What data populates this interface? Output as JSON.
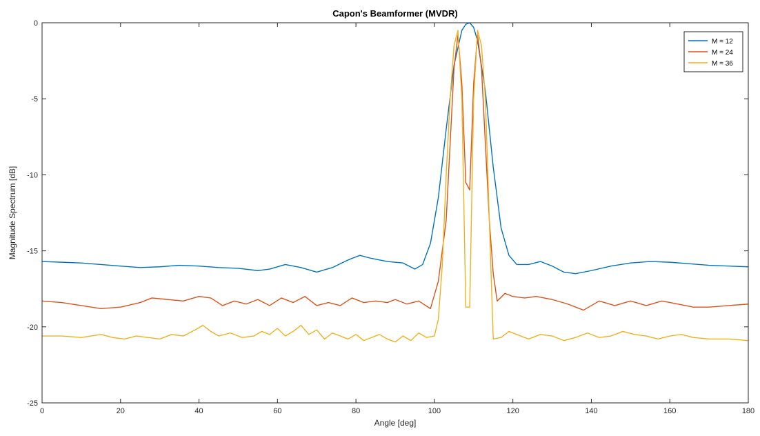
{
  "chart_data": {
    "type": "line",
    "title": "Capon's Beamformer (MVDR)",
    "xlabel": "Angle [deg]",
    "ylabel": "Magnitude Spectrum [dB]",
    "xlim": [
      0,
      180
    ],
    "ylim": [
      -25,
      0
    ],
    "xticks": [
      0,
      20,
      40,
      60,
      80,
      100,
      120,
      140,
      160,
      180
    ],
    "yticks": [
      -25,
      -20,
      -15,
      -10,
      -5,
      0
    ],
    "grid": false,
    "legend_position": "top-right",
    "series": [
      {
        "name": "M = 12",
        "color": "#0072bd",
        "x": [
          0,
          5,
          10,
          15,
          20,
          25,
          30,
          35,
          40,
          45,
          50,
          55,
          58,
          62,
          66,
          70,
          74,
          78,
          81,
          84,
          88,
          92,
          95,
          97,
          99,
          101,
          103,
          105,
          107,
          108,
          109,
          110,
          111,
          113,
          115,
          117,
          119,
          121,
          124,
          127,
          130,
          133,
          136,
          140,
          145,
          150,
          155,
          160,
          165,
          170,
          175,
          180
        ],
        "y": [
          -15.7,
          -15.75,
          -15.8,
          -15.9,
          -16.0,
          -16.1,
          -16.05,
          -15.95,
          -16.0,
          -16.1,
          -16.15,
          -16.3,
          -16.2,
          -15.9,
          -16.1,
          -16.4,
          -16.1,
          -15.6,
          -15.3,
          -15.5,
          -15.7,
          -15.8,
          -16.2,
          -15.9,
          -14.5,
          -11.5,
          -7.0,
          -2.8,
          -0.5,
          -0.1,
          0.0,
          -0.3,
          -1.2,
          -4.5,
          -9.5,
          -13.5,
          -15.3,
          -15.9,
          -15.9,
          -15.7,
          -16.0,
          -16.4,
          -16.5,
          -16.3,
          -16.0,
          -15.8,
          -15.7,
          -15.75,
          -15.85,
          -15.95,
          -16.0,
          -16.05
        ]
      },
      {
        "name": "M = 24",
        "color": "#d95319",
        "x": [
          0,
          5,
          10,
          15,
          20,
          25,
          28,
          32,
          36,
          40,
          43,
          46,
          49,
          52,
          55,
          58,
          61,
          64,
          67,
          70,
          73,
          76,
          79,
          82,
          85,
          88,
          90,
          93,
          96,
          99,
          101,
          103,
          104,
          105,
          106,
          107,
          108,
          109,
          110,
          111,
          112,
          113,
          114,
          115,
          116,
          118,
          120,
          123,
          126,
          130,
          134,
          138,
          142,
          146,
          150,
          154,
          158,
          162,
          166,
          170,
          175,
          180
        ],
        "y": [
          -18.3,
          -18.4,
          -18.6,
          -18.8,
          -18.7,
          -18.4,
          -18.1,
          -18.2,
          -18.3,
          -18.0,
          -18.1,
          -18.6,
          -18.3,
          -18.5,
          -18.2,
          -18.6,
          -18.1,
          -18.4,
          -18.0,
          -18.6,
          -18.4,
          -18.6,
          -18.1,
          -18.4,
          -18.3,
          -18.4,
          -18.2,
          -18.5,
          -18.3,
          -18.8,
          -17.0,
          -13.0,
          -8.0,
          -3.0,
          -0.8,
          -4.0,
          -10.5,
          -11.0,
          -4.0,
          -0.8,
          -3.0,
          -8.0,
          -13.0,
          -16.5,
          -18.3,
          -17.8,
          -18.0,
          -18.1,
          -18.0,
          -18.2,
          -18.5,
          -18.9,
          -18.3,
          -18.6,
          -18.3,
          -18.6,
          -18.3,
          -18.5,
          -18.7,
          -18.7,
          -18.6,
          -18.5
        ]
      },
      {
        "name": "M = 36",
        "color": "#edb120",
        "x": [
          0,
          5,
          10,
          15,
          18,
          21,
          24,
          27,
          30,
          33,
          36,
          39,
          41,
          43,
          45,
          48,
          51,
          54,
          56,
          58,
          60,
          62,
          64,
          66,
          68,
          70,
          72,
          74,
          76,
          78,
          80,
          82,
          84,
          86,
          88,
          90,
          92,
          94,
          96,
          98,
          100,
          101,
          102,
          103,
          104,
          105,
          106,
          107,
          108,
          109,
          110,
          111,
          112,
          113,
          114,
          115,
          117,
          119,
          121,
          124,
          127,
          130,
          133,
          136,
          139,
          142,
          145,
          148,
          151,
          154,
          157,
          160,
          163,
          166,
          170,
          175,
          180
        ],
        "y": [
          -20.6,
          -20.6,
          -20.7,
          -20.5,
          -20.7,
          -20.8,
          -20.6,
          -20.7,
          -20.8,
          -20.5,
          -20.6,
          -20.2,
          -19.9,
          -20.3,
          -20.6,
          -20.4,
          -20.7,
          -20.6,
          -20.3,
          -20.5,
          -20.1,
          -20.6,
          -20.3,
          -19.9,
          -20.5,
          -20.2,
          -20.8,
          -20.4,
          -20.6,
          -20.8,
          -20.5,
          -20.9,
          -20.7,
          -20.5,
          -20.8,
          -21.0,
          -20.6,
          -20.9,
          -20.4,
          -20.7,
          -20.6,
          -19.5,
          -16.0,
          -10.0,
          -5.0,
          -1.5,
          -0.5,
          -5.0,
          -18.7,
          -18.7,
          -5.0,
          -0.5,
          -1.5,
          -5.0,
          -13.0,
          -20.8,
          -20.7,
          -20.3,
          -20.5,
          -20.8,
          -20.5,
          -20.6,
          -20.9,
          -20.7,
          -20.4,
          -20.7,
          -20.6,
          -20.3,
          -20.5,
          -20.6,
          -20.8,
          -20.6,
          -20.5,
          -20.7,
          -20.8,
          -20.8,
          -20.9
        ]
      }
    ]
  }
}
